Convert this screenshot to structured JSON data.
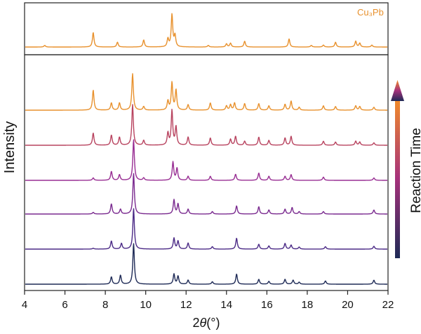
{
  "chart_data": {
    "type": "line",
    "title": "",
    "xlabel_prefix": "2",
    "xlabel_theta": "θ",
    "xlabel_suffix": "(°)",
    "ylabel": "Intensity",
    "xlim": [
      4,
      22
    ],
    "x_ticks": [
      4,
      6,
      8,
      10,
      12,
      14,
      16,
      18,
      20,
      22
    ],
    "grid": false,
    "reference": {
      "label": "Cu₃Pb",
      "color": "#E8912D",
      "peaks": [
        [
          5.0,
          0.05
        ],
        [
          7.4,
          0.45
        ],
        [
          8.6,
          0.15
        ],
        [
          9.9,
          0.22
        ],
        [
          11.1,
          0.25
        ],
        [
          11.3,
          1.0
        ],
        [
          11.45,
          0.35
        ],
        [
          13.1,
          0.05
        ],
        [
          14.0,
          0.1
        ],
        [
          14.2,
          0.12
        ],
        [
          14.9,
          0.18
        ],
        [
          17.1,
          0.25
        ],
        [
          18.2,
          0.05
        ],
        [
          18.8,
          0.06
        ],
        [
          19.4,
          0.15
        ],
        [
          20.4,
          0.18
        ],
        [
          20.6,
          0.12
        ],
        [
          21.2,
          0.06
        ]
      ]
    },
    "series": [
      {
        "color": "#E8912D",
        "peaks": [
          [
            7.4,
            0.55
          ],
          [
            8.3,
            0.2
          ],
          [
            8.7,
            0.2
          ],
          [
            9.35,
            1.0
          ],
          [
            9.9,
            0.1
          ],
          [
            11.1,
            0.25
          ],
          [
            11.3,
            0.75
          ],
          [
            11.5,
            0.55
          ],
          [
            12.1,
            0.15
          ],
          [
            13.2,
            0.2
          ],
          [
            14.0,
            0.12
          ],
          [
            14.2,
            0.15
          ],
          [
            14.4,
            0.2
          ],
          [
            14.9,
            0.18
          ],
          [
            15.6,
            0.18
          ],
          [
            16.1,
            0.12
          ],
          [
            16.9,
            0.16
          ],
          [
            17.2,
            0.25
          ],
          [
            17.6,
            0.08
          ],
          [
            18.8,
            0.12
          ],
          [
            19.4,
            0.1
          ],
          [
            20.4,
            0.12
          ],
          [
            20.6,
            0.1
          ],
          [
            21.3,
            0.08
          ]
        ]
      },
      {
        "color": "#B8435F",
        "peaks": [
          [
            7.4,
            0.3
          ],
          [
            8.3,
            0.25
          ],
          [
            8.7,
            0.2
          ],
          [
            9.35,
            1.0
          ],
          [
            9.9,
            0.12
          ],
          [
            11.1,
            0.3
          ],
          [
            11.3,
            0.85
          ],
          [
            11.5,
            0.45
          ],
          [
            12.1,
            0.2
          ],
          [
            13.2,
            0.18
          ],
          [
            14.2,
            0.15
          ],
          [
            14.45,
            0.22
          ],
          [
            14.9,
            0.1
          ],
          [
            15.6,
            0.2
          ],
          [
            16.1,
            0.12
          ],
          [
            16.9,
            0.18
          ],
          [
            17.2,
            0.22
          ],
          [
            18.8,
            0.1
          ],
          [
            19.4,
            0.08
          ],
          [
            20.4,
            0.1
          ],
          [
            20.6,
            0.08
          ],
          [
            21.3,
            0.06
          ]
        ]
      },
      {
        "color": "#982E93",
        "peaks": [
          [
            7.4,
            0.06
          ],
          [
            8.3,
            0.22
          ],
          [
            8.7,
            0.14
          ],
          [
            9.4,
            1.0
          ],
          [
            9.9,
            0.06
          ],
          [
            11.35,
            0.45
          ],
          [
            11.55,
            0.3
          ],
          [
            12.1,
            0.1
          ],
          [
            13.2,
            0.1
          ],
          [
            14.45,
            0.15
          ],
          [
            15.6,
            0.18
          ],
          [
            16.1,
            0.1
          ],
          [
            16.9,
            0.1
          ],
          [
            17.2,
            0.14
          ],
          [
            18.8,
            0.08
          ],
          [
            21.3,
            0.06
          ]
        ]
      },
      {
        "color": "#7A2A8F",
        "peaks": [
          [
            7.4,
            0.04
          ],
          [
            8.3,
            0.25
          ],
          [
            8.75,
            0.12
          ],
          [
            9.4,
            1.0
          ],
          [
            11.4,
            0.35
          ],
          [
            11.6,
            0.25
          ],
          [
            12.1,
            0.12
          ],
          [
            13.3,
            0.06
          ],
          [
            14.5,
            0.2
          ],
          [
            15.6,
            0.18
          ],
          [
            16.1,
            0.1
          ],
          [
            16.9,
            0.12
          ],
          [
            17.25,
            0.16
          ],
          [
            17.6,
            0.06
          ],
          [
            18.8,
            0.06
          ],
          [
            21.3,
            0.1
          ]
        ]
      },
      {
        "color": "#4B2A86",
        "peaks": [
          [
            7.4,
            0.02
          ],
          [
            8.3,
            0.2
          ],
          [
            8.8,
            0.14
          ],
          [
            9.4,
            1.0
          ],
          [
            11.4,
            0.27
          ],
          [
            11.6,
            0.2
          ],
          [
            12.1,
            0.15
          ],
          [
            13.3,
            0.06
          ],
          [
            14.5,
            0.27
          ],
          [
            15.6,
            0.12
          ],
          [
            16.1,
            0.08
          ],
          [
            16.9,
            0.14
          ],
          [
            17.2,
            0.1
          ],
          [
            17.6,
            0.05
          ],
          [
            18.9,
            0.06
          ],
          [
            21.3,
            0.07
          ]
        ]
      },
      {
        "color": "#1E2A56",
        "peaks": [
          [
            8.3,
            0.18
          ],
          [
            8.75,
            0.22
          ],
          [
            9.4,
            1.0
          ],
          [
            11.4,
            0.25
          ],
          [
            11.6,
            0.2
          ],
          [
            12.1,
            0.1
          ],
          [
            13.3,
            0.06
          ],
          [
            14.5,
            0.25
          ],
          [
            15.6,
            0.12
          ],
          [
            16.1,
            0.07
          ],
          [
            16.9,
            0.12
          ],
          [
            17.3,
            0.1
          ],
          [
            17.6,
            0.05
          ],
          [
            18.9,
            0.08
          ],
          [
            21.3,
            0.1
          ]
        ]
      }
    ],
    "arrow": {
      "label": "Reaction Time",
      "gradient_start": "#1E2A56",
      "gradient_mid": "#A6317B",
      "gradient_end": "#F28C28"
    }
  }
}
